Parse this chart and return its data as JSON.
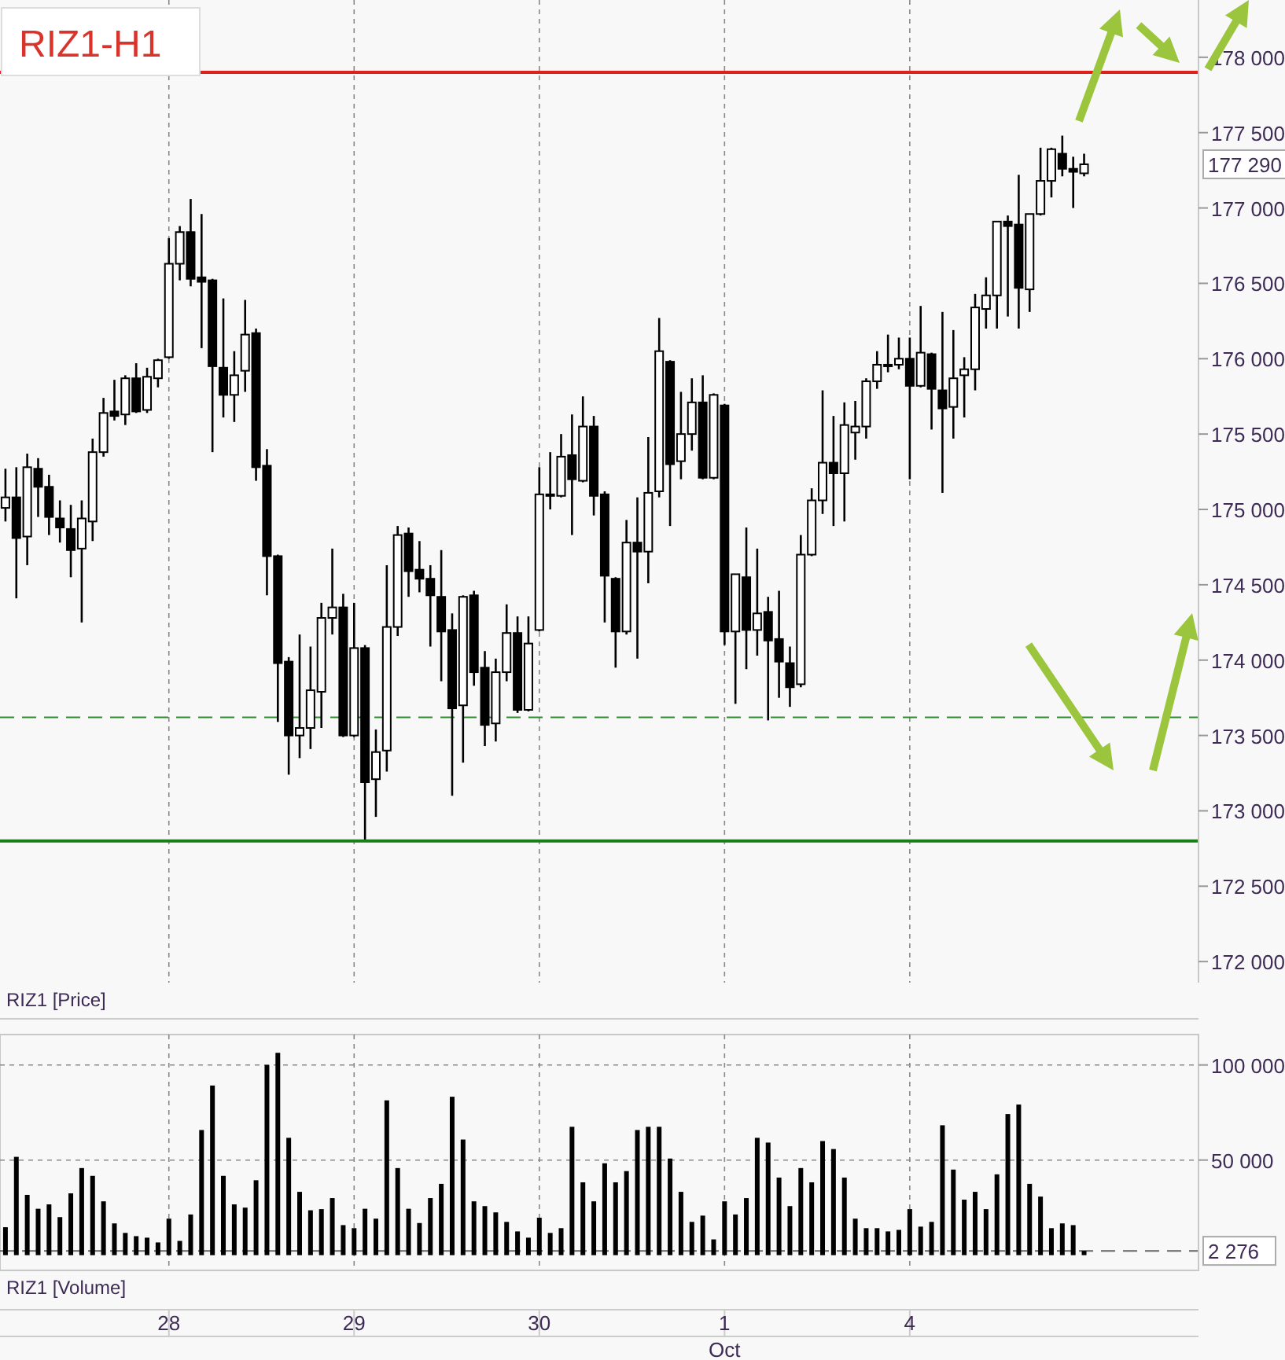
{
  "chart_data": [
    {
      "type": "candlestick",
      "title": "RIZ1-H1",
      "categories": [
        null,
        null,
        null,
        null,
        null,
        null,
        null,
        null,
        null,
        null,
        null,
        null,
        null,
        null,
        null,
        "28",
        null,
        null,
        null,
        null,
        null,
        null,
        null,
        null,
        null,
        null,
        null,
        null,
        null,
        null,
        null,
        null,
        "29",
        null,
        null,
        null,
        null,
        null,
        null,
        null,
        null,
        null,
        null,
        null,
        null,
        null,
        null,
        null,
        null,
        "30",
        null,
        null,
        null,
        null,
        null,
        null,
        null,
        null,
        null,
        null,
        null,
        null,
        null,
        null,
        null,
        null,
        "1",
        null,
        null,
        null,
        null,
        null,
        null,
        null,
        null,
        null,
        null,
        null,
        null,
        null,
        null,
        null,
        null,
        "4",
        null,
        null,
        null,
        null,
        null,
        null,
        null,
        null,
        null,
        null,
        null,
        null,
        null,
        null,
        null,
        null,
        null,
        null,
        null,
        null,
        null,
        null,
        null,
        null,
        null,
        null
      ],
      "ohlc": [
        [
          175010,
          175270,
          174920,
          175080
        ],
        [
          175080,
          175280,
          174410,
          174810
        ],
        [
          174820,
          175370,
          174630,
          175280
        ],
        [
          175270,
          175340,
          174950,
          175150
        ],
        [
          175150,
          175230,
          174830,
          174950
        ],
        [
          174940,
          175060,
          174780,
          174880
        ],
        [
          174870,
          175030,
          174550,
          174730
        ],
        [
          174740,
          175060,
          174250,
          174940
        ],
        [
          174920,
          175470,
          174790,
          175380
        ],
        [
          175380,
          175740,
          175350,
          175640
        ],
        [
          175650,
          175860,
          175590,
          175620
        ],
        [
          175630,
          175890,
          175560,
          175870
        ],
        [
          175870,
          175970,
          175640,
          175650
        ],
        [
          175660,
          175940,
          175640,
          175880
        ],
        [
          175870,
          176000,
          175810,
          175990
        ],
        [
          176010,
          176800,
          176000,
          176630
        ],
        [
          176630,
          176880,
          176520,
          176840
        ],
        [
          176840,
          177060,
          176480,
          176530
        ],
        [
          176540,
          176960,
          176070,
          176510
        ],
        [
          176520,
          176530,
          175380,
          175950
        ],
        [
          175940,
          176400,
          175610,
          175760
        ],
        [
          175760,
          176050,
          175580,
          175890
        ],
        [
          175920,
          176390,
          175780,
          176160
        ],
        [
          176170,
          176200,
          175190,
          175280
        ],
        [
          175290,
          175400,
          174430,
          174690
        ],
        [
          174690,
          174700,
          173590,
          173980
        ],
        [
          173990,
          174020,
          173240,
          173500
        ],
        [
          173500,
          174170,
          173350,
          173550
        ],
        [
          173550,
          174090,
          173410,
          173800
        ],
        [
          173790,
          174380,
          173550,
          174280
        ],
        [
          174280,
          174740,
          174170,
          174350
        ],
        [
          174350,
          174440,
          173490,
          173500
        ],
        [
          173500,
          174380,
          173490,
          174080
        ],
        [
          174080,
          174100,
          172810,
          173190
        ],
        [
          173210,
          173540,
          172960,
          173390
        ],
        [
          173400,
          174630,
          173260,
          174220
        ],
        [
          174220,
          174890,
          174160,
          174830
        ],
        [
          174840,
          174880,
          174420,
          174590
        ],
        [
          174600,
          174790,
          174450,
          174540
        ],
        [
          174540,
          174630,
          174090,
          174430
        ],
        [
          174420,
          174730,
          173860,
          174190
        ],
        [
          174200,
          174310,
          173100,
          173680
        ],
        [
          173700,
          174430,
          173320,
          174420
        ],
        [
          174430,
          174460,
          173830,
          173920
        ],
        [
          173950,
          174060,
          173430,
          173570
        ],
        [
          173580,
          174010,
          173460,
          173920
        ],
        [
          173920,
          174370,
          173860,
          174180
        ],
        [
          174180,
          174290,
          173650,
          173670
        ],
        [
          173670,
          174290,
          173660,
          174110
        ],
        [
          174200,
          175280,
          174190,
          175100
        ],
        [
          175090,
          175380,
          175000,
          175100
        ],
        [
          175090,
          175500,
          175080,
          175350
        ],
        [
          175360,
          175630,
          174830,
          175200
        ],
        [
          175190,
          175750,
          175180,
          175550
        ],
        [
          175550,
          175620,
          174960,
          175090
        ],
        [
          175100,
          175120,
          174250,
          174560
        ],
        [
          174540,
          174550,
          173950,
          174190
        ],
        [
          174190,
          174930,
          174170,
          174780
        ],
        [
          174780,
          175080,
          174010,
          174720
        ],
        [
          174720,
          175480,
          174510,
          175110
        ],
        [
          175120,
          176270,
          175080,
          176050
        ],
        [
          175980,
          175990,
          174890,
          175300
        ],
        [
          175320,
          175780,
          175200,
          175500
        ],
        [
          175500,
          175870,
          175390,
          175710
        ],
        [
          175710,
          175890,
          175200,
          175210
        ],
        [
          175210,
          175770,
          175200,
          175760
        ],
        [
          175690,
          175700,
          174100,
          174190
        ],
        [
          174190,
          174570,
          173710,
          174570
        ],
        [
          174550,
          174880,
          173940,
          174200
        ],
        [
          174200,
          174740,
          174030,
          174310
        ],
        [
          174320,
          174420,
          173600,
          174130
        ],
        [
          174140,
          174460,
          173750,
          173990
        ],
        [
          173980,
          174090,
          173690,
          173820
        ],
        [
          173840,
          174830,
          173820,
          174700
        ],
        [
          174700,
          175140,
          174690,
          175060
        ],
        [
          175060,
          175790,
          174970,
          175310
        ],
        [
          175310,
          175620,
          174890,
          175240
        ],
        [
          175240,
          175710,
          174920,
          175560
        ],
        [
          175510,
          175720,
          175330,
          175550
        ],
        [
          175550,
          175870,
          175470,
          175850
        ],
        [
          175850,
          176050,
          175800,
          175960
        ],
        [
          175950,
          176160,
          175910,
          175960
        ],
        [
          175960,
          176140,
          175930,
          176000
        ],
        [
          176000,
          176140,
          175200,
          175820
        ],
        [
          175820,
          176350,
          175810,
          176040
        ],
        [
          176030,
          176040,
          175530,
          175800
        ],
        [
          175790,
          176310,
          175110,
          175670
        ],
        [
          175680,
          176190,
          175470,
          175870
        ],
        [
          175890,
          176010,
          175610,
          175930
        ],
        [
          175930,
          176430,
          175790,
          176340
        ],
        [
          176330,
          176540,
          176200,
          176420
        ],
        [
          176420,
          176910,
          176200,
          176910
        ],
        [
          176910,
          176950,
          176280,
          176880
        ],
        [
          176890,
          177220,
          176200,
          176470
        ],
        [
          176460,
          176960,
          176310,
          176960
        ],
        [
          176960,
          177400,
          176950,
          177180
        ],
        [
          177180,
          177400,
          177070,
          177390
        ],
        [
          177360,
          177480,
          177210,
          177260
        ],
        [
          177260,
          177340,
          177000,
          177240
        ],
        [
          177230,
          177360,
          177210,
          177290
        ],
        null,
        null,
        null,
        null,
        null,
        null,
        null,
        null,
        null,
        null
      ],
      "ylim": [
        171860,
        178380
      ],
      "yticks": [
        {
          "value": 172000,
          "label": "172 000"
        },
        {
          "value": 172500,
          "label": "172 500"
        },
        {
          "value": 173000,
          "label": "173 000"
        },
        {
          "value": 173500,
          "label": "173 500"
        },
        {
          "value": 174000,
          "label": "174 000"
        },
        {
          "value": 174500,
          "label": "174 500"
        },
        {
          "value": 175000,
          "label": "175 000"
        },
        {
          "value": 175500,
          "label": "175 500"
        },
        {
          "value": 176000,
          "label": "176 000"
        },
        {
          "value": 176500,
          "label": "176 500"
        },
        {
          "value": 177000,
          "label": "177 000"
        },
        {
          "value": 177500,
          "label": "177 500"
        },
        {
          "value": 178000,
          "label": "178 000"
        }
      ],
      "grid": "x",
      "tick_labels": "y",
      "ref_lines": [
        {
          "axis": "y",
          "value": 177900,
          "color": "#e0201b",
          "line_style": "solid"
        },
        {
          "axis": "y",
          "value": 172800,
          "color": "#1a7f1a",
          "line_style": "solid"
        },
        {
          "axis": "y",
          "value": 173620,
          "color": "#2e8b2e",
          "line_style": "dashed"
        }
      ],
      "annotations": [
        "RIZ1 [Price]",
        "177 290"
      ]
    },
    {
      "type": "bar",
      "categories": [
        null,
        null,
        null,
        null,
        null,
        null,
        null,
        null,
        null,
        null,
        null,
        null,
        null,
        null,
        null,
        "28",
        null,
        null,
        null,
        null,
        null,
        null,
        null,
        null,
        null,
        null,
        null,
        null,
        null,
        null,
        null,
        null,
        "29",
        null,
        null,
        null,
        null,
        null,
        null,
        null,
        null,
        null,
        null,
        null,
        null,
        null,
        null,
        null,
        null,
        "30",
        null,
        null,
        null,
        null,
        null,
        null,
        null,
        null,
        null,
        null,
        null,
        null,
        null,
        null,
        null,
        null,
        "1",
        null,
        null,
        null,
        null,
        null,
        null,
        null,
        null,
        null,
        null,
        null,
        null,
        null,
        null,
        null,
        null,
        "4",
        null,
        null,
        null,
        null,
        null,
        null,
        null,
        null,
        null,
        null,
        null,
        null,
        null,
        null,
        null,
        null,
        null,
        null,
        null,
        null,
        null,
        null,
        null,
        null,
        null,
        null
      ],
      "values": [
        14700,
        51700,
        31700,
        24400,
        26700,
        20000,
        32500,
        45800,
        41700,
        28300,
        16700,
        11700,
        10000,
        9200,
        6700,
        19200,
        7500,
        21400,
        65800,
        89200,
        41700,
        26700,
        25000,
        39400,
        100000,
        106400,
        61700,
        33300,
        23600,
        24200,
        30000,
        15800,
        14200,
        24400,
        19200,
        81400,
        45800,
        24400,
        16900,
        30000,
        37500,
        83300,
        60800,
        28300,
        25800,
        22500,
        17500,
        12500,
        9200,
        19700,
        11700,
        14200,
        67500,
        38300,
        28300,
        48300,
        38300,
        44200,
        65800,
        67500,
        67500,
        50800,
        33300,
        17500,
        20800,
        8300,
        28300,
        21400,
        30000,
        61700,
        59200,
        40800,
        25800,
        45800,
        38300,
        60000,
        55800,
        40800,
        19200,
        14200,
        14200,
        12500,
        13300,
        24200,
        15000,
        17500,
        68300,
        45000,
        29200,
        33300,
        24200,
        42500,
        74200,
        79200,
        37500,
        30800,
        14200,
        16700,
        15800,
        2276,
        null,
        null,
        null,
        null,
        null,
        null,
        null,
        null,
        null,
        null
      ],
      "color": "#000000",
      "ylim": [
        -8000,
        116000
      ],
      "yticks": [
        {
          "value": 50000,
          "label": "50 000"
        },
        {
          "value": 100000,
          "label": "100 000"
        }
      ],
      "grid": true,
      "ref_lines": [
        {
          "axis": "y",
          "value": 2276,
          "label": "2 276",
          "color": "#666666",
          "line_style": "dashed"
        }
      ],
      "annotations": [
        "RIZ1 [Volume]",
        {
          "text": "Oct",
          "x": "1"
        }
      ]
    }
  ]
}
